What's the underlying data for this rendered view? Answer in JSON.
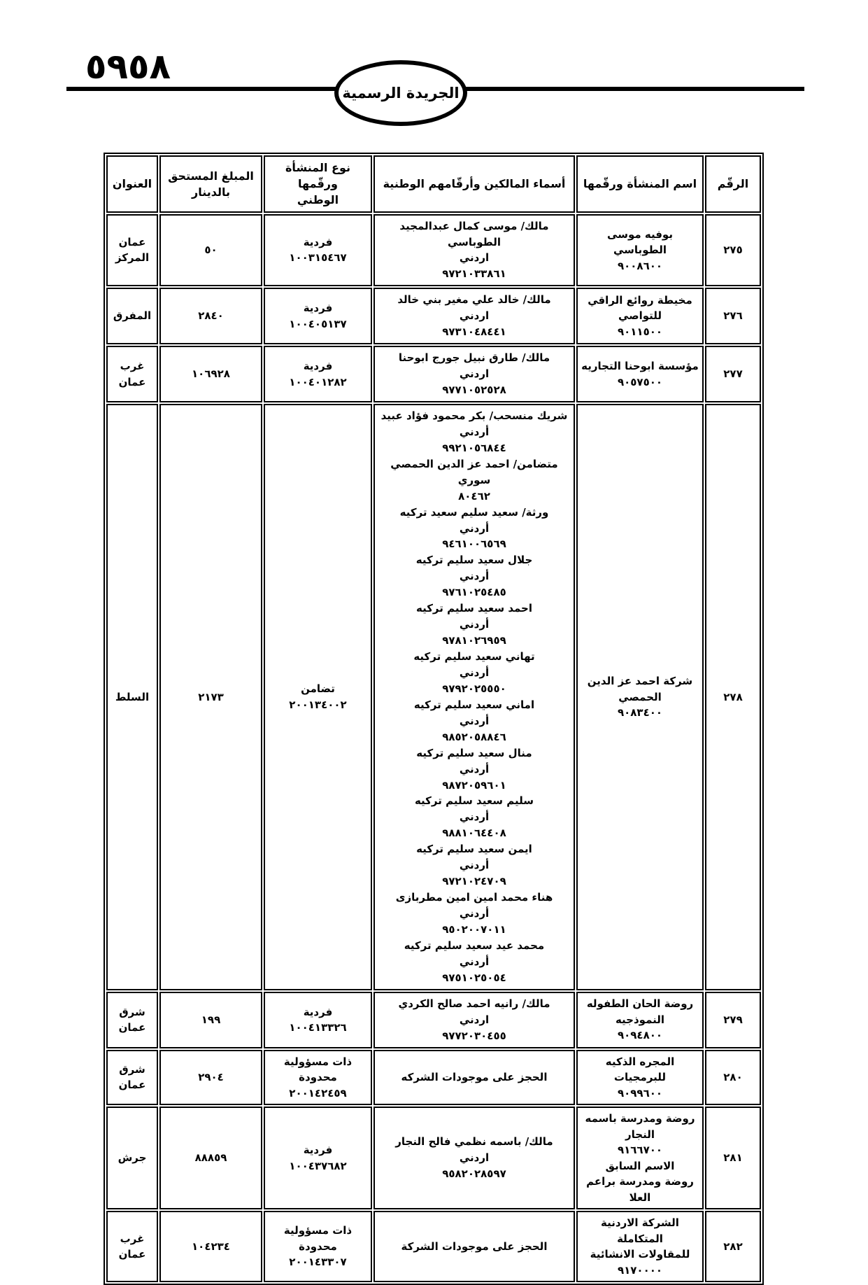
{
  "page": {
    "number": "٥٩٥٨",
    "gazette_title": "الجريدة الرسمية"
  },
  "table": {
    "headers": {
      "number": "الرقّم",
      "establishment": "اسم المنشأة ورقّمها",
      "owners": "أسماء المالكين وأرقّامهم الوطنية",
      "type": [
        "نوع المنشأة ورقّمها",
        "الوطني"
      ],
      "amount": [
        "المبلغ المستحق",
        "بالدينار"
      ],
      "address": "العنوان"
    },
    "rows": [
      {
        "number": "٢٧٥",
        "establishment": [
          "بوفيه موسى الطوباسي",
          "٩٠٠٨٦٠٠"
        ],
        "owners": [
          "مالك/ موسى كمال عبدالمجيد الطوباسي",
          "اردني",
          "٩٧٢١٠٣٣٨٦١"
        ],
        "type": [
          "فردية",
          "١٠٠٣١٥٤٦٧"
        ],
        "amount": "٥٠",
        "address": [
          "عمان",
          "المركز"
        ]
      },
      {
        "number": "٢٧٦",
        "establishment": [
          "مخيطة روائع الراقي",
          "للتواصي",
          "٩٠١١٥٠٠"
        ],
        "owners": [
          "مالك/ خالد علي مغير بني خالد",
          "اردني",
          "٩٧٣١٠٤٨٤٤١"
        ],
        "type": [
          "فردية",
          "١٠٠٤٠٥١٣٧"
        ],
        "amount": "٢٨٤٠",
        "address": [
          "المفرق"
        ]
      },
      {
        "number": "٢٧٧",
        "establishment": [
          "مؤسسة ابوحنا التجاريه",
          "٩٠٥٧٥٠٠"
        ],
        "owners": [
          "مالك/ طارق نبيل جورج ابوحنا",
          "اردني",
          "٩٧٧١٠٥٢٥٢٨"
        ],
        "type": [
          "فردية",
          "١٠٠٤٠١٢٨٢"
        ],
        "amount": "١٠٦٩٢٨",
        "address": [
          "غرب",
          "عمان"
        ]
      },
      {
        "number": "٢٧٨",
        "establishment": [
          "شركة احمد عز الدين",
          "الحمصي",
          "٩٠٨٣٤٠٠"
        ],
        "owners": [
          "شريك منسحب/ بكر محمود فؤاد عبيد",
          "أردني",
          "٩٩٢١٠٥٦٨٤٤",
          "متضامن/ احمد عز الدين الحمصي",
          "سوري",
          "٨٠٤٦٢",
          "ورثة/ سعيد سليم سعيد تركيه",
          "أردني",
          "٩٤٦١٠٠٦٥٦٩",
          "جلال سعيد سليم تركيه",
          "أردني",
          "٩٧٦١٠٢٥٤٨٥",
          "احمد سعيد سليم تركيه",
          "أردني",
          "٩٧٨١٠٢٦٩٥٩",
          "تهاني سعيد سليم تركيه",
          "أردني",
          "٩٧٩٢٠٢٥٥٥٠",
          "اماني سعيد سليم تركيه",
          "أردني",
          "٩٨٥٢٠٥٨٨٤٦",
          "منال سعيد سليم تركيه",
          "أردني",
          "٩٨٧٢٠٥٩٦٠١",
          "سليم سعيد سليم تركيه",
          "أردني",
          "٩٨٨١٠٦٤٤٠٨",
          "ايمن سعيد سليم تركيه",
          "أردني",
          "٩٧٢١٠٢٤٧٠٩",
          "هناء محمد امين امين مطربازى",
          "أردني",
          "٩٥٠٢٠٠٧٠١١",
          "محمد عيد سعيد سليم تركيه",
          "أردني",
          "٩٧٥١٠٢٥٠٥٤"
        ],
        "type": [
          "تضامن",
          "٢٠٠١٣٤٠٠٢"
        ],
        "amount": "٢١٧٣",
        "address": [
          "السلط"
        ]
      },
      {
        "number": "٢٧٩",
        "establishment": [
          "روضة الحان الطفوله",
          "النموذجيه",
          "٩٠٩٤٨٠٠"
        ],
        "owners": [
          "مالك/ رانيه احمد صالح الكردي",
          "اردني",
          "٩٧٧٢٠٣٠٤٥٥"
        ],
        "type": [
          "فردية",
          "١٠٠٤١٣٣٢٦"
        ],
        "amount": "١٩٩",
        "address": [
          "شرق",
          "عمان"
        ]
      },
      {
        "number": "٢٨٠",
        "establishment": [
          "المجره الذكيه للبرمجيات",
          "٩٠٩٩٦٠٠"
        ],
        "owners": [
          "الحجز على موجودات الشركه"
        ],
        "type": [
          "ذات مسؤولية محدودة",
          "٢٠٠١٤٢٤٥٩"
        ],
        "amount": "٢٩٠٤",
        "address": [
          "شرق",
          "عمان"
        ]
      },
      {
        "number": "٢٨١",
        "establishment": [
          "روضة ومدرسة باسمه",
          "النجار",
          "٩١٦٦٧٠٠",
          "الاسم السابق",
          "روضة ومدرسة براعم",
          "العلا"
        ],
        "owners": [
          "مالك/ باسمه نظمي فالح النجار",
          "اردني",
          "٩٥٨٢٠٢٨٥٩٧"
        ],
        "type": [
          "فردية",
          "١٠٠٤٣٧٦٨٢"
        ],
        "amount": "٨٨٨٥٩",
        "address": [
          "جرش"
        ]
      },
      {
        "number": "٢٨٢",
        "establishment": [
          "الشركة الاردنية المتكاملة",
          "للمقاولات الانشائية",
          "٩١٧٠٠٠٠"
        ],
        "owners": [
          "الحجز على موجودات الشركة"
        ],
        "type": [
          "ذات مسؤولية محدودة",
          "٢٠٠١٤٣٣٠٧"
        ],
        "amount": "١٠٤٢٣٤",
        "address": [
          "غرب",
          "عمان"
        ]
      }
    ]
  }
}
